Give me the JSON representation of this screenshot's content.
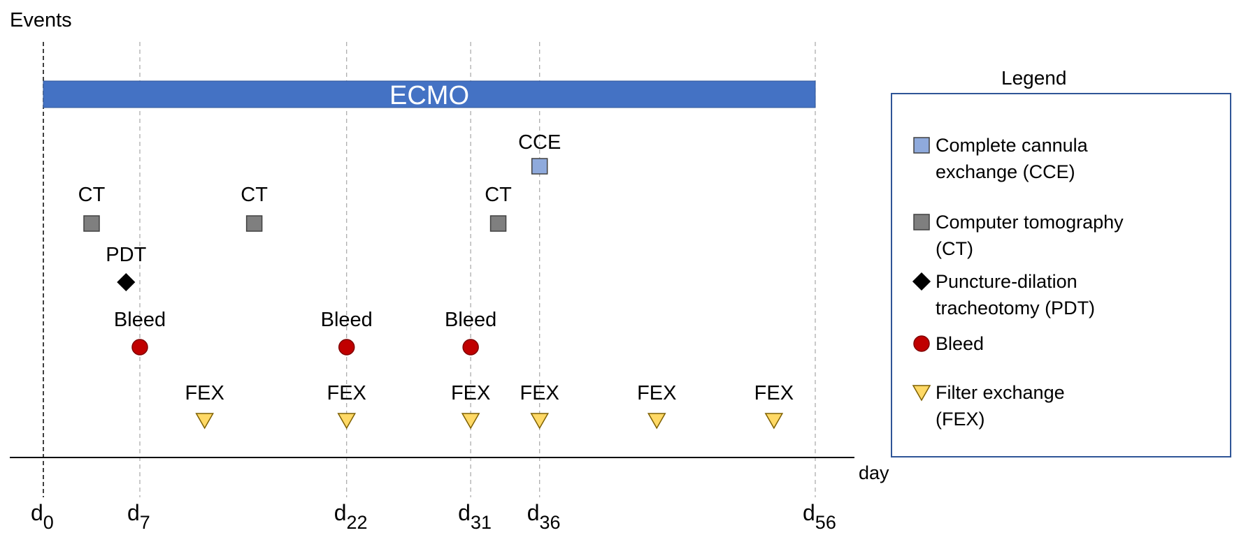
{
  "chart_data": {
    "type": "timeline",
    "ylabel": "Events",
    "xlabel": "day",
    "xlim": [
      0,
      56
    ],
    "ticks": [
      {
        "day": 0,
        "main": "d",
        "sub": "0"
      },
      {
        "day": 7,
        "main": "d",
        "sub": "7"
      },
      {
        "day": 22,
        "main": "d",
        "sub": "22"
      },
      {
        "day": 31,
        "main": "d",
        "sub": "31"
      },
      {
        "day": 36,
        "main": "d",
        "sub": "36"
      },
      {
        "day": 56,
        "main": "d",
        "sub": "56"
      }
    ],
    "ecmo": {
      "label": "ECMO",
      "start": 0,
      "end": 56,
      "color": "#4472C4"
    },
    "event_types": {
      "CCE": {
        "legend": "Complete cannula exchange (CCE)",
        "legend_lines": [
          "Complete cannula",
          "exchange (CCE)"
        ],
        "marker": "square",
        "color": "#8FAADC"
      },
      "CT": {
        "legend": "Computer tomography (CT)",
        "legend_lines": [
          "Computer tomography",
          "(CT)"
        ],
        "marker": "square",
        "color": "#7F7F7F"
      },
      "PDT": {
        "legend": "Puncture-dilation tracheotomy (PDT)",
        "legend_lines": [
          "Puncture-dilation",
          "tracheotomy (PDT)"
        ],
        "marker": "diamond",
        "color": "#000000"
      },
      "Bleed": {
        "legend": "Bleed",
        "legend_lines": [
          "Bleed"
        ],
        "marker": "circle",
        "color": "#C00000"
      },
      "FEX": {
        "legend": "Filter exchange (FEX)",
        "legend_lines": [
          "Filter exchange",
          "(FEX)"
        ],
        "marker": "triangle-down",
        "color": "#FFD966"
      }
    },
    "events": [
      {
        "type": "CCE",
        "label": "CCE",
        "day": 36
      },
      {
        "type": "CT",
        "label": "CT",
        "day": 3.5
      },
      {
        "type": "CT",
        "label": "CT",
        "day": 15.3
      },
      {
        "type": "CT",
        "label": "CT",
        "day": 33
      },
      {
        "type": "PDT",
        "label": "PDT",
        "day": 6
      },
      {
        "type": "Bleed",
        "label": "Bleed",
        "day": 7
      },
      {
        "type": "Bleed",
        "label": "Bleed",
        "day": 22
      },
      {
        "type": "Bleed",
        "label": "Bleed",
        "day": 31
      },
      {
        "type": "FEX",
        "label": "FEX",
        "day": 11.7
      },
      {
        "type": "FEX",
        "label": "FEX",
        "day": 22
      },
      {
        "type": "FEX",
        "label": "FEX",
        "day": 31
      },
      {
        "type": "FEX",
        "label": "FEX",
        "day": 36
      },
      {
        "type": "FEX",
        "label": "FEX",
        "day": 44.5
      },
      {
        "type": "FEX",
        "label": "FEX",
        "day": 53
      }
    ],
    "legend": {
      "title": "Legend",
      "position": "right",
      "order": [
        "CCE",
        "CT",
        "PDT",
        "Bleed",
        "FEX"
      ]
    }
  }
}
